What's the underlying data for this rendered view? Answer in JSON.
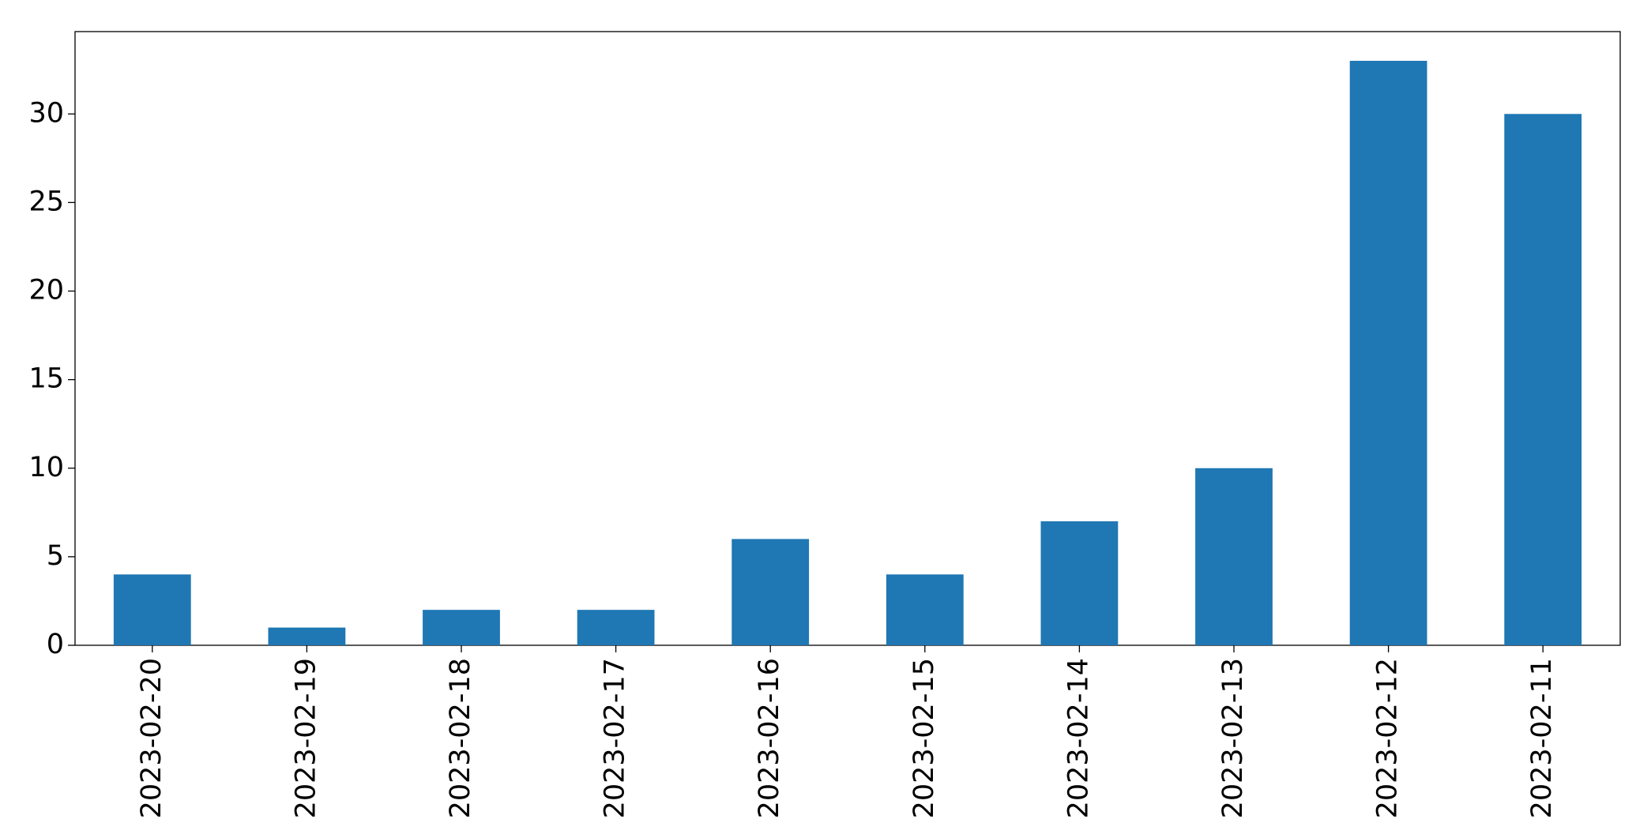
{
  "chart_data": {
    "type": "bar",
    "categories": [
      "2023-02-20",
      "2023-02-19",
      "2023-02-18",
      "2023-02-17",
      "2023-02-16",
      "2023-02-15",
      "2023-02-14",
      "2023-02-13",
      "2023-02-12",
      "2023-02-11"
    ],
    "values": [
      4,
      1,
      2,
      2,
      6,
      4,
      7,
      10,
      33,
      30
    ],
    "color": "#1f77b4",
    "ylim": [
      0,
      34.65
    ],
    "yticks": [
      0,
      5,
      10,
      15,
      20,
      25,
      30
    ],
    "grid": false
  }
}
